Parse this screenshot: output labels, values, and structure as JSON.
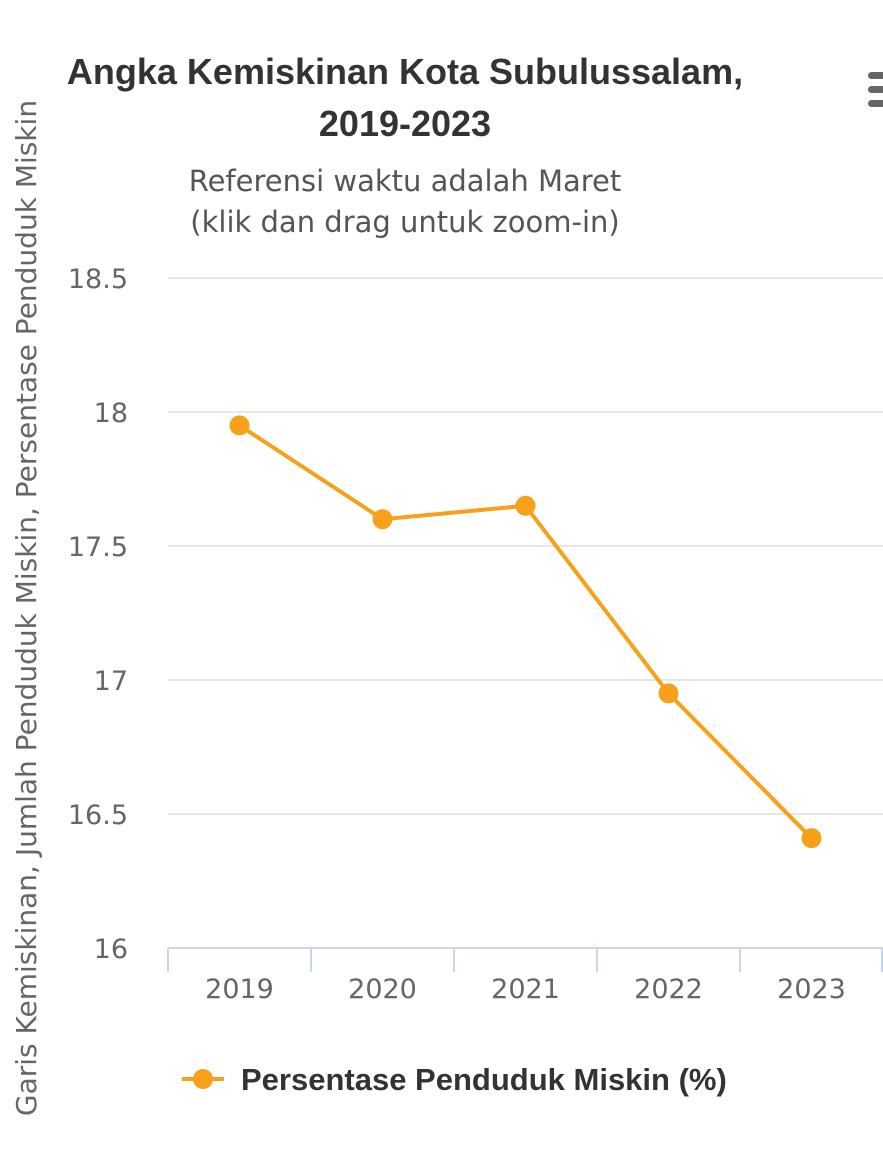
{
  "chart_data": {
    "type": "line",
    "title": "Angka Kemiskinan Kota Subulussalam, 2019-2023",
    "title_lines": [
      "Angka Kemiskinan Kota Subulussalam,",
      "2019-2023"
    ],
    "subtitle_lines": [
      "Referensi waktu adalah Maret",
      "(klik dan drag untuk zoom-in)"
    ],
    "ylabel": "Garis Kemiskinan, Jumlah Penduduk Miskin, Persentase Penduduk Miskin",
    "xlabel": "",
    "categories": [
      "2019",
      "2020",
      "2021",
      "2022",
      "2023"
    ],
    "series": [
      {
        "name": "Persentase Penduduk Miskin (%)",
        "values": [
          17.95,
          17.6,
          17.65,
          16.95,
          16.41
        ],
        "color": "#f7a11a"
      }
    ],
    "ylim": [
      16,
      18.5
    ],
    "yticks": [
      16,
      16.5,
      17,
      17.5,
      18,
      18.5
    ],
    "ytick_labels": [
      "16",
      "16.5",
      "17",
      "17.5",
      "18",
      "18.5"
    ],
    "grid": true,
    "legend_position": "bottom-center"
  },
  "menu": {
    "icon": "hamburger-menu-icon"
  }
}
